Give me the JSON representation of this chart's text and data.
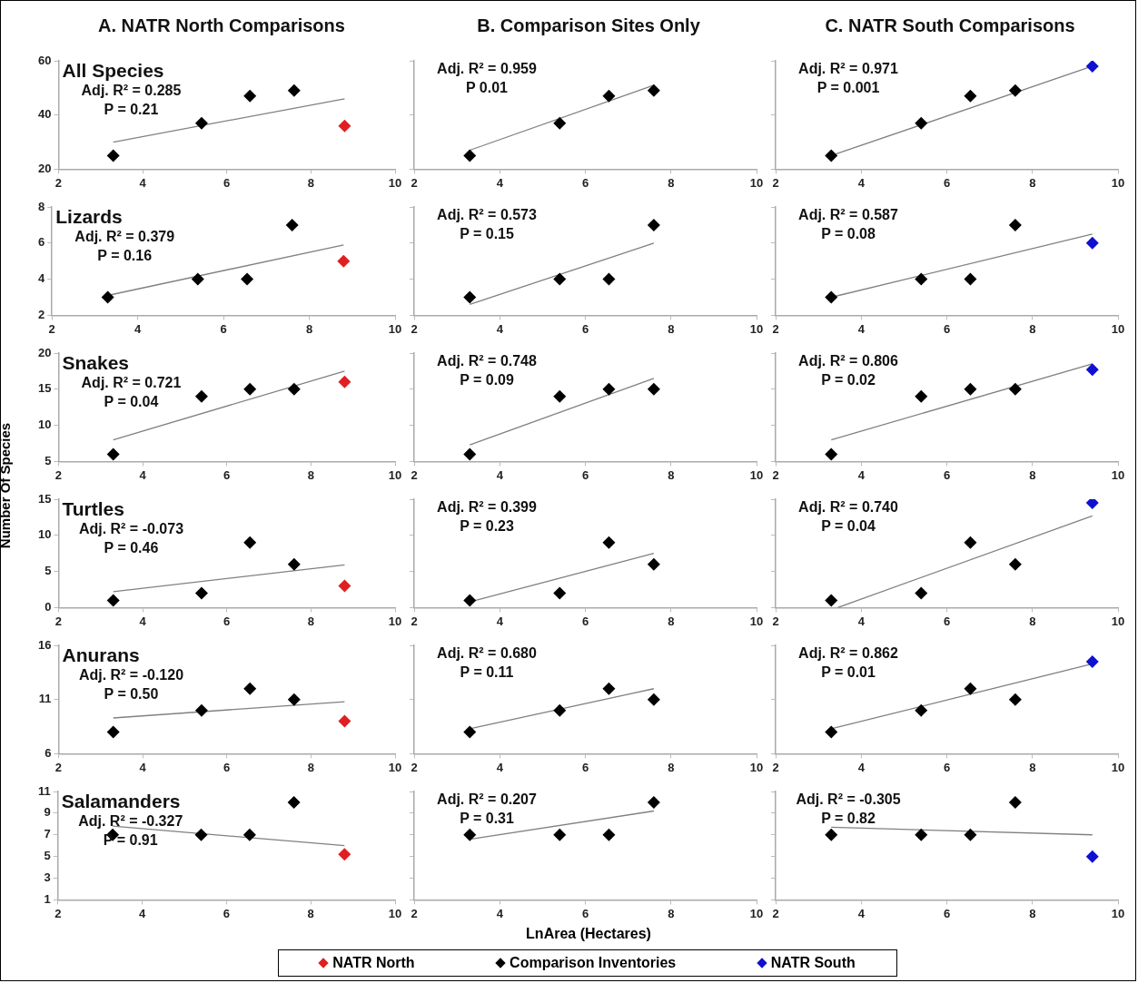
{
  "chart_data": [
    {
      "type": "scatter",
      "title": "A. NATR North Comparisons",
      "subtitle": "All Species",
      "annotations": [
        "Adj. R² = 0.285",
        "P = 0.21"
      ],
      "marker": "diamond",
      "legend": "bottom",
      "xlim": [
        2,
        10
      ],
      "xticks": [
        2,
        4,
        6,
        8,
        10
      ],
      "ylim": [
        20,
        60
      ],
      "yticks": [
        20,
        40,
        60
      ],
      "series": [
        {
          "name": "NATR North",
          "color": "#e02020",
          "x": [
            8.8
          ],
          "values": [
            36
          ]
        },
        {
          "name": "Comparison Inventories",
          "color": "#000000",
          "x": [
            3.3,
            5.4,
            6.55,
            7.6
          ],
          "values": [
            25,
            37,
            47,
            49
          ]
        },
        {
          "type": "line",
          "color": "#808080",
          "marker": "none",
          "x": [
            3.3,
            8.8
          ],
          "values": [
            30,
            46
          ]
        }
      ]
    },
    {
      "type": "scatter",
      "title": "B. Comparison Sites Only",
      "annotations": [
        "Adj. R² = 0.959",
        "P 0.01"
      ],
      "marker": "diamond",
      "tick_labels": "x",
      "xlim": [
        2,
        10
      ],
      "xticks": [
        2,
        4,
        6,
        8,
        10
      ],
      "ylim": [
        20,
        60
      ],
      "yticks": [
        20,
        40,
        60
      ],
      "series": [
        {
          "color": "#000000",
          "x": [
            3.3,
            5.4,
            6.55,
            7.6
          ],
          "values": [
            25,
            37,
            47,
            49
          ]
        },
        {
          "type": "line",
          "color": "#808080",
          "marker": "none",
          "x": [
            3.3,
            7.6
          ],
          "values": [
            27,
            51
          ]
        }
      ]
    },
    {
      "type": "scatter",
      "title": "C. NATR South Comparisons",
      "annotations": [
        "Adj. R² = 0.971",
        "P = 0.001"
      ],
      "marker": "diamond",
      "legend": "bottom",
      "tick_labels": "x",
      "xlim": [
        2,
        10
      ],
      "xticks": [
        2,
        4,
        6,
        8,
        10
      ],
      "ylim": [
        20,
        60
      ],
      "yticks": [
        20,
        40,
        60
      ],
      "series": [
        {
          "color": "#000000",
          "x": [
            3.3,
            5.4,
            6.55,
            7.6
          ],
          "values": [
            25,
            37,
            47,
            49
          ]
        },
        {
          "name": "NATR South",
          "color": "#1010d0",
          "x": [
            9.4
          ],
          "values": [
            58
          ]
        },
        {
          "type": "line",
          "color": "#808080",
          "marker": "none",
          "x": [
            3.3,
            9.4
          ],
          "values": [
            25,
            58
          ]
        }
      ]
    },
    {
      "type": "scatter",
      "subtitle": "Lizards",
      "annotations": [
        "Adj. R² = 0.379",
        "P = 0.16"
      ],
      "marker": "diamond",
      "xlim": [
        2,
        10
      ],
      "xticks": [
        2,
        4,
        6,
        8,
        10
      ],
      "ylim": [
        2,
        8
      ],
      "yticks": [
        2,
        4,
        6,
        8
      ],
      "series": [
        {
          "color": "#e02020",
          "x": [
            8.8
          ],
          "values": [
            5
          ]
        },
        {
          "color": "#000000",
          "x": [
            3.3,
            5.4,
            6.55,
            7.6
          ],
          "values": [
            3,
            4,
            4,
            7
          ]
        },
        {
          "type": "line",
          "color": "#808080",
          "marker": "none",
          "x": [
            3.3,
            8.8
          ],
          "values": [
            3.1,
            5.9
          ]
        }
      ]
    },
    {
      "type": "scatter",
      "annotations": [
        "Adj. R² = 0.573",
        "P = 0.15"
      ],
      "marker": "diamond",
      "tick_labels": "x",
      "xlim": [
        2,
        10
      ],
      "xticks": [
        2,
        4,
        6,
        8,
        10
      ],
      "ylim": [
        2,
        8
      ],
      "yticks": [
        2,
        4,
        6,
        8
      ],
      "series": [
        {
          "color": "#000000",
          "x": [
            3.3,
            5.4,
            6.55,
            7.6
          ],
          "values": [
            3,
            4,
            4,
            7
          ]
        },
        {
          "type": "line",
          "color": "#808080",
          "marker": "none",
          "x": [
            3.3,
            7.6
          ],
          "values": [
            2.6,
            6
          ]
        }
      ]
    },
    {
      "type": "scatter",
      "annotations": [
        "Adj. R² = 0.587",
        "P = 0.08"
      ],
      "marker": "diamond",
      "tick_labels": "x",
      "xlim": [
        2,
        10
      ],
      "xticks": [
        2,
        4,
        6,
        8,
        10
      ],
      "ylim": [
        2,
        8
      ],
      "yticks": [
        2,
        4,
        6,
        8
      ],
      "series": [
        {
          "color": "#000000",
          "x": [
            3.3,
            5.4,
            6.55,
            7.6
          ],
          "values": [
            3,
            4,
            4,
            7
          ]
        },
        {
          "color": "#1010d0",
          "x": [
            9.4
          ],
          "values": [
            6
          ]
        },
        {
          "type": "line",
          "color": "#808080",
          "marker": "none",
          "x": [
            3.3,
            9.4
          ],
          "values": [
            3,
            6.5
          ]
        }
      ]
    },
    {
      "type": "scatter",
      "subtitle": "Snakes",
      "ylabel": "Number Of Species",
      "annotations": [
        "Adj. R² = 0.721",
        "P = 0.04"
      ],
      "marker": "diamond",
      "xlim": [
        2,
        10
      ],
      "xticks": [
        2,
        4,
        6,
        8,
        10
      ],
      "ylim": [
        5,
        20
      ],
      "yticks": [
        5,
        10,
        15,
        20
      ],
      "series": [
        {
          "color": "#e02020",
          "x": [
            8.8
          ],
          "values": [
            16
          ]
        },
        {
          "color": "#000000",
          "x": [
            3.3,
            5.4,
            6.55,
            7.6
          ],
          "values": [
            6,
            14,
            15,
            15
          ]
        },
        {
          "type": "line",
          "color": "#808080",
          "marker": "none",
          "x": [
            3.3,
            8.8
          ],
          "values": [
            8,
            17.5
          ]
        }
      ]
    },
    {
      "type": "scatter",
      "annotations": [
        "Adj. R² = 0.748",
        "P = 0.09"
      ],
      "marker": "diamond",
      "tick_labels": "x",
      "xlim": [
        2,
        10
      ],
      "xticks": [
        2,
        4,
        6,
        8,
        10
      ],
      "ylim": [
        5,
        20
      ],
      "yticks": [
        5,
        10,
        15,
        20
      ],
      "series": [
        {
          "color": "#000000",
          "x": [
            3.3,
            5.4,
            6.55,
            7.6
          ],
          "values": [
            6,
            14,
            15,
            15
          ]
        },
        {
          "type": "line",
          "color": "#808080",
          "marker": "none",
          "x": [
            3.3,
            7.6
          ],
          "values": [
            7.3,
            16.5
          ]
        }
      ]
    },
    {
      "type": "scatter",
      "annotations": [
        "Adj. R² = 0.806",
        "P = 0.02"
      ],
      "marker": "diamond",
      "tick_labels": "x",
      "xlim": [
        2,
        10
      ],
      "xticks": [
        2,
        4,
        6,
        8,
        10
      ],
      "ylim": [
        5,
        20
      ],
      "yticks": [
        5,
        10,
        15,
        20
      ],
      "series": [
        {
          "color": "#000000",
          "x": [
            3.3,
            5.4,
            6.55,
            7.6
          ],
          "values": [
            6,
            14,
            15,
            15
          ]
        },
        {
          "color": "#1010d0",
          "x": [
            9.4
          ],
          "values": [
            17.7
          ]
        },
        {
          "type": "line",
          "color": "#808080",
          "marker": "none",
          "x": [
            3.3,
            9.4
          ],
          "values": [
            8,
            18.5
          ]
        }
      ]
    },
    {
      "type": "scatter",
      "subtitle": "Turtles",
      "annotations": [
        "Adj. R² = -0.073",
        "P = 0.46"
      ],
      "marker": "diamond",
      "xlim": [
        2,
        10
      ],
      "xticks": [
        2,
        4,
        6,
        8,
        10
      ],
      "ylim": [
        0,
        15
      ],
      "yticks": [
        0,
        5,
        10,
        15
      ],
      "series": [
        {
          "color": "#e02020",
          "x": [
            8.8
          ],
          "values": [
            3
          ]
        },
        {
          "color": "#000000",
          "x": [
            3.3,
            5.4,
            6.55,
            7.6
          ],
          "values": [
            1,
            2,
            9,
            6
          ]
        },
        {
          "type": "line",
          "color": "#808080",
          "marker": "none",
          "x": [
            3.3,
            8.8
          ],
          "values": [
            2.2,
            5.9
          ]
        }
      ]
    },
    {
      "type": "scatter",
      "annotations": [
        "Adj. R² = 0.399",
        "P = 0.23"
      ],
      "marker": "diamond",
      "tick_labels": "x",
      "xlim": [
        2,
        10
      ],
      "xticks": [
        2,
        4,
        6,
        8,
        10
      ],
      "ylim": [
        0,
        15
      ],
      "yticks": [
        0,
        5,
        10,
        15
      ],
      "series": [
        {
          "color": "#000000",
          "x": [
            3.3,
            5.4,
            6.55,
            7.6
          ],
          "values": [
            1,
            2,
            9,
            6
          ]
        },
        {
          "type": "line",
          "color": "#808080",
          "marker": "none",
          "x": [
            3.3,
            7.6
          ],
          "values": [
            0.8,
            7.5
          ]
        }
      ]
    },
    {
      "type": "scatter",
      "annotations": [
        "Adj. R² = 0.740",
        "P = 0.04"
      ],
      "marker": "diamond",
      "tick_labels": "x",
      "xlim": [
        2,
        10
      ],
      "xticks": [
        2,
        4,
        6,
        8,
        10
      ],
      "ylim": [
        0,
        15
      ],
      "yticks": [
        0,
        5,
        10,
        15
      ],
      "series": [
        {
          "color": "#000000",
          "x": [
            3.3,
            5.4,
            6.55,
            7.6
          ],
          "values": [
            1,
            2,
            9,
            6
          ]
        },
        {
          "color": "#1010d0",
          "x": [
            9.4
          ],
          "values": [
            14.5
          ]
        },
        {
          "type": "line",
          "color": "#808080",
          "marker": "none",
          "x": [
            3.45,
            9.4
          ],
          "values": [
            0,
            12.7
          ]
        }
      ]
    },
    {
      "type": "scatter",
      "subtitle": "Anurans",
      "annotations": [
        "Adj. R² = -0.120",
        "P = 0.50"
      ],
      "marker": "diamond",
      "xlim": [
        2,
        10
      ],
      "xticks": [
        2,
        4,
        6,
        8,
        10
      ],
      "ylim": [
        6,
        16
      ],
      "yticks": [
        6,
        11,
        16
      ],
      "series": [
        {
          "color": "#e02020",
          "x": [
            8.8
          ],
          "values": [
            9
          ]
        },
        {
          "color": "#000000",
          "x": [
            3.3,
            5.4,
            6.55,
            7.6
          ],
          "values": [
            8,
            10,
            12,
            11
          ]
        },
        {
          "type": "line",
          "color": "#808080",
          "marker": "none",
          "x": [
            3.3,
            8.8
          ],
          "values": [
            9.3,
            10.8
          ]
        }
      ]
    },
    {
      "type": "scatter",
      "annotations": [
        "Adj. R² = 0.680",
        "P = 0.11"
      ],
      "marker": "diamond",
      "tick_labels": "x",
      "xlim": [
        2,
        10
      ],
      "xticks": [
        2,
        4,
        6,
        8,
        10
      ],
      "ylim": [
        6,
        16
      ],
      "yticks": [
        6,
        11,
        16
      ],
      "series": [
        {
          "color": "#000000",
          "x": [
            3.3,
            5.4,
            6.55,
            7.6
          ],
          "values": [
            8,
            10,
            12,
            11
          ]
        },
        {
          "type": "line",
          "color": "#808080",
          "marker": "none",
          "x": [
            3.3,
            7.6
          ],
          "values": [
            8.3,
            12
          ]
        }
      ]
    },
    {
      "type": "scatter",
      "annotations": [
        "Adj. R² = 0.862",
        "P = 0.01"
      ],
      "marker": "diamond",
      "tick_labels": "x",
      "xlim": [
        2,
        10
      ],
      "xticks": [
        2,
        4,
        6,
        8,
        10
      ],
      "ylim": [
        6,
        16
      ],
      "yticks": [
        6,
        11,
        16
      ],
      "series": [
        {
          "color": "#000000",
          "x": [
            3.3,
            5.4,
            6.55,
            7.6
          ],
          "values": [
            8,
            10,
            12,
            11
          ]
        },
        {
          "color": "#1010d0",
          "x": [
            9.4
          ],
          "values": [
            14.5
          ]
        },
        {
          "type": "line",
          "color": "#808080",
          "marker": "none",
          "x": [
            3.3,
            9.4
          ],
          "values": [
            8.3,
            14.3
          ]
        }
      ]
    },
    {
      "type": "scatter",
      "subtitle": "Salamanders",
      "annotations": [
        "Adj. R² = -0.327",
        "P = 0.91"
      ],
      "marker": "diamond",
      "xlim": [
        2,
        10
      ],
      "xticks": [
        2,
        4,
        6,
        8,
        10
      ],
      "ylim": [
        1,
        11
      ],
      "yticks": [
        1,
        3,
        5,
        7,
        9,
        11
      ],
      "series": [
        {
          "color": "#e02020",
          "x": [
            8.8
          ],
          "values": [
            5.2
          ]
        },
        {
          "color": "#000000",
          "x": [
            3.3,
            5.4,
            6.55,
            7.6
          ],
          "values": [
            7,
            7,
            7,
            10
          ]
        },
        {
          "type": "line",
          "color": "#808080",
          "marker": "none",
          "x": [
            3.3,
            8.8
          ],
          "values": [
            7.8,
            6
          ]
        }
      ]
    },
    {
      "type": "scatter",
      "xlabel": "LnArea (Hectares)",
      "annotations": [
        "Adj. R² = 0.207",
        "P = 0.31"
      ],
      "marker": "diamond",
      "tick_labels": "x",
      "xlim": [
        2,
        10
      ],
      "xticks": [
        2,
        4,
        6,
        8,
        10
      ],
      "ylim": [
        1,
        11
      ],
      "yticks": [
        1,
        3,
        5,
        7,
        9,
        11
      ],
      "series": [
        {
          "color": "#000000",
          "x": [
            3.3,
            5.4,
            6.55,
            7.6
          ],
          "values": [
            7,
            7,
            7,
            10
          ]
        },
        {
          "type": "line",
          "color": "#808080",
          "marker": "none",
          "x": [
            3.3,
            7.6
          ],
          "values": [
            6.6,
            9.2
          ]
        }
      ]
    },
    {
      "type": "scatter",
      "annotations": [
        "Adj. R² = -0.305",
        "P = 0.82"
      ],
      "marker": "diamond",
      "tick_labels": "x",
      "xlim": [
        2,
        10
      ],
      "xticks": [
        2,
        4,
        6,
        8,
        10
      ],
      "ylim": [
        1,
        11
      ],
      "yticks": [
        1,
        3,
        5,
        7,
        9,
        11
      ],
      "series": [
        {
          "color": "#000000",
          "x": [
            3.3,
            5.4,
            6.55,
            7.6
          ],
          "values": [
            7,
            7,
            7,
            10
          ]
        },
        {
          "color": "#1010d0",
          "x": [
            9.4
          ],
          "values": [
            5
          ]
        },
        {
          "type": "line",
          "color": "#808080",
          "marker": "none",
          "x": [
            3.3,
            9.4
          ],
          "values": [
            7.7,
            7
          ]
        }
      ]
    }
  ]
}
